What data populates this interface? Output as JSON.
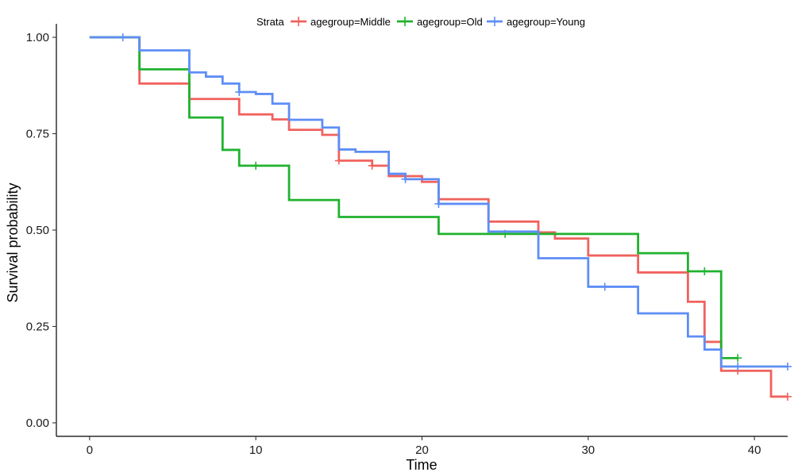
{
  "chart_data": {
    "type": "line",
    "subtype": "step (Kaplan-Meier survival curve)",
    "xlabel": "Time",
    "ylabel": "Survival probability",
    "xlim": [
      -2,
      42
    ],
    "ylim": [
      -0.035,
      1.035
    ],
    "x_ticks": [
      0,
      10,
      20,
      30,
      40
    ],
    "x_tick_labels": [
      "0",
      "10",
      "20",
      "30",
      "40"
    ],
    "y_ticks": [
      0,
      0.25,
      0.5,
      0.75,
      1.0
    ],
    "y_tick_labels": [
      "0.00",
      "0.25",
      "0.50",
      "0.75",
      "1.00"
    ],
    "grid": false,
    "legend": {
      "title": "Strata",
      "position": "top"
    },
    "series": [
      {
        "name": "agegroup=Middle",
        "color": "#F0625D",
        "steps": [
          [
            0,
            1.0
          ],
          [
            3,
            0.88
          ],
          [
            6,
            0.84
          ],
          [
            9,
            0.8
          ],
          [
            11,
            0.787
          ],
          [
            12,
            0.76
          ],
          [
            14,
            0.747
          ],
          [
            15,
            0.68
          ],
          [
            17,
            0.667
          ],
          [
            18,
            0.64
          ],
          [
            20,
            0.625
          ],
          [
            21,
            0.58
          ],
          [
            24,
            0.522
          ],
          [
            27,
            0.494
          ],
          [
            28,
            0.478
          ],
          [
            30,
            0.434
          ],
          [
            33,
            0.39
          ],
          [
            36,
            0.314
          ],
          [
            37,
            0.21
          ],
          [
            38,
            0.135
          ],
          [
            41,
            0.068
          ],
          [
            42,
            0.068
          ]
        ],
        "censored": [
          [
            15,
            0.68
          ],
          [
            17,
            0.667
          ],
          [
            39,
            0.135
          ],
          [
            42,
            0.068
          ]
        ]
      },
      {
        "name": "agegroup=Old",
        "color": "#20B22E",
        "steps": [
          [
            0,
            1.0
          ],
          [
            3,
            0.917
          ],
          [
            6,
            0.792
          ],
          [
            8,
            0.708
          ],
          [
            9,
            0.667
          ],
          [
            12,
            0.578
          ],
          [
            15,
            0.534
          ],
          [
            21,
            0.49
          ],
          [
            33,
            0.44
          ],
          [
            36,
            0.393
          ],
          [
            38,
            0.168
          ],
          [
            39,
            0.168
          ]
        ],
        "censored": [
          [
            10,
            0.667
          ],
          [
            25,
            0.49
          ],
          [
            37,
            0.393
          ],
          [
            39,
            0.168
          ]
        ]
      },
      {
        "name": "agegroup=Young",
        "color": "#5D8EF5",
        "steps": [
          [
            0,
            1.0
          ],
          [
            3,
            0.966
          ],
          [
            6,
            0.909
          ],
          [
            7,
            0.898
          ],
          [
            8,
            0.88
          ],
          [
            9,
            0.858
          ],
          [
            10,
            0.853
          ],
          [
            11,
            0.828
          ],
          [
            12,
            0.786
          ],
          [
            14,
            0.766
          ],
          [
            15,
            0.709
          ],
          [
            16,
            0.703
          ],
          [
            18,
            0.646
          ],
          [
            19,
            0.632
          ],
          [
            21,
            0.568
          ],
          [
            24,
            0.496
          ],
          [
            27,
            0.427
          ],
          [
            30,
            0.353
          ],
          [
            33,
            0.284
          ],
          [
            36,
            0.224
          ],
          [
            37,
            0.19
          ],
          [
            38,
            0.146
          ],
          [
            42,
            0.146
          ]
        ],
        "censored": [
          [
            2,
            1.0
          ],
          [
            9,
            0.858
          ],
          [
            19,
            0.632
          ],
          [
            21,
            0.568
          ],
          [
            31,
            0.353
          ],
          [
            39,
            0.146
          ],
          [
            42,
            0.146
          ]
        ]
      }
    ]
  }
}
